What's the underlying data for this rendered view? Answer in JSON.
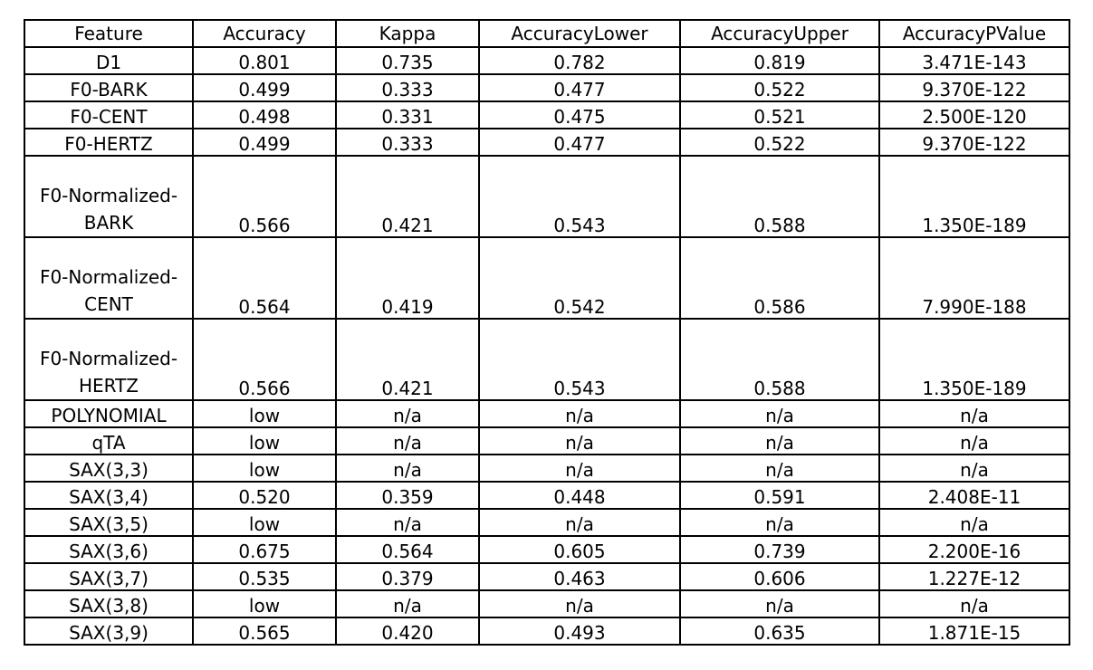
{
  "table": {
    "columns": [
      "Feature",
      "Accuracy",
      "Kappa",
      "AccuracyLower",
      "AccuracyUpper",
      "AccuracyPValue"
    ],
    "rows": [
      {
        "feature": "D1",
        "accuracy": "0.801",
        "kappa": "0.735",
        "lower": "0.782",
        "upper": "0.819",
        "pvalue": "3.471E-143"
      },
      {
        "feature": "F0-BARK",
        "accuracy": "0.499",
        "kappa": "0.333",
        "lower": "0.477",
        "upper": "0.522",
        "pvalue": "9.370E-122"
      },
      {
        "feature": "F0-CENT",
        "accuracy": "0.498",
        "kappa": "0.331",
        "lower": "0.475",
        "upper": "0.521",
        "pvalue": "2.500E-120"
      },
      {
        "feature": "F0-HERTZ",
        "accuracy": "0.499",
        "kappa": "0.333",
        "lower": "0.477",
        "upper": "0.522",
        "pvalue": "9.370E-122"
      },
      {
        "feature_line1": "F0-Normalized-",
        "feature_line2": "BARK",
        "accuracy": "0.566",
        "kappa": "0.421",
        "lower": "0.543",
        "upper": "0.588",
        "pvalue": "1.350E-189"
      },
      {
        "feature_line1": "F0-Normalized-",
        "feature_line2": "CENT",
        "accuracy": "0.564",
        "kappa": "0.419",
        "lower": "0.542",
        "upper": "0.586",
        "pvalue": "7.990E-188"
      },
      {
        "feature_line1": "F0-Normalized-",
        "feature_line2": "HERTZ",
        "accuracy": "0.566",
        "kappa": "0.421",
        "lower": "0.543",
        "upper": "0.588",
        "pvalue": "1.350E-189"
      },
      {
        "feature": "POLYNOMIAL",
        "accuracy": "low",
        "kappa": "n/a",
        "lower": "n/a",
        "upper": "n/a",
        "pvalue": "n/a"
      },
      {
        "feature": "qTA",
        "accuracy": "low",
        "kappa": "n/a",
        "lower": "n/a",
        "upper": "n/a",
        "pvalue": "n/a"
      },
      {
        "feature": "SAX(3,3)",
        "accuracy": "low",
        "kappa": "n/a",
        "lower": "n/a",
        "upper": "n/a",
        "pvalue": "n/a"
      },
      {
        "feature": "SAX(3,4)",
        "accuracy": "0.520",
        "kappa": "0.359",
        "lower": "0.448",
        "upper": "0.591",
        "pvalue": "2.408E-11"
      },
      {
        "feature": "SAX(3,5)",
        "accuracy": "low",
        "kappa": "n/a",
        "lower": "n/a",
        "upper": "n/a",
        "pvalue": "n/a"
      },
      {
        "feature": "SAX(3,6)",
        "accuracy": "0.675",
        "kappa": "0.564",
        "lower": "0.605",
        "upper": "0.739",
        "pvalue": "2.200E-16"
      },
      {
        "feature": "SAX(3,7)",
        "accuracy": "0.535",
        "kappa": "0.379",
        "lower": "0.463",
        "upper": "0.606",
        "pvalue": "1.227E-12"
      },
      {
        "feature": "SAX(3,8)",
        "accuracy": "low",
        "kappa": "n/a",
        "lower": "n/a",
        "upper": "n/a",
        "pvalue": "n/a"
      },
      {
        "feature": "SAX(3,9)",
        "accuracy": "0.565",
        "kappa": "0.420",
        "lower": "0.493",
        "upper": "0.635",
        "pvalue": "1.871E-15"
      }
    ]
  }
}
